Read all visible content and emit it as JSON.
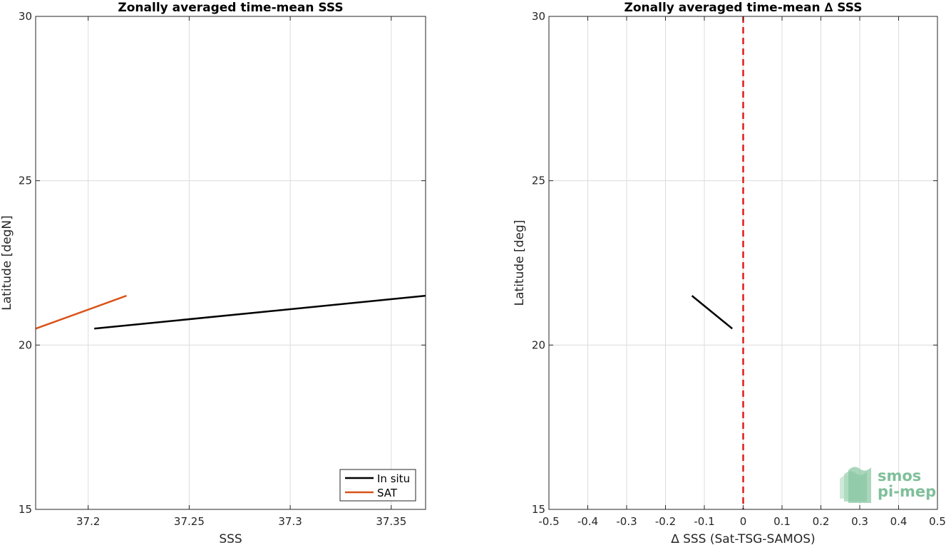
{
  "chart_data": [
    {
      "type": "line",
      "title": "Zonally averaged time-mean SSS",
      "xlabel": "SSS",
      "ylabel": "Latitude [degN]",
      "xlim": [
        37.174,
        37.367
      ],
      "ylim": [
        15,
        30
      ],
      "xticks": [
        37.2,
        37.25,
        37.3,
        37.35
      ],
      "xtick_labels": [
        "37.2",
        "37.25",
        "37.3",
        "37.35"
      ],
      "yticks": [
        15,
        20,
        25,
        30
      ],
      "ytick_labels": [
        "15",
        "20",
        "25",
        "30"
      ],
      "grid": true,
      "legend": "bottom-right",
      "series": [
        {
          "name": "In situ",
          "color": "#000000",
          "x": [
            37.203,
            37.367
          ],
          "y": [
            20.5,
            21.5
          ]
        },
        {
          "name": "SAT",
          "color": "#d95319",
          "x": [
            37.174,
            37.219
          ],
          "y": [
            20.5,
            21.5
          ]
        }
      ]
    },
    {
      "type": "line",
      "title": "Zonally averaged time-mean ∆ SSS",
      "xlabel": "∆ SSS (Sat-TSG-SAMOS)",
      "ylabel": "Latitude [deg]",
      "xlim": [
        -0.5,
        0.5
      ],
      "ylim": [
        15,
        30
      ],
      "xticks": [
        -0.5,
        -0.4,
        -0.3,
        -0.2,
        -0.1,
        0,
        0.1,
        0.2,
        0.3,
        0.4,
        0.5
      ],
      "xtick_labels": [
        "-0.5",
        "-0.4",
        "-0.3",
        "-0.2",
        "-0.1",
        "0",
        "0.1",
        "0.2",
        "0.3",
        "0.4",
        "0.5"
      ],
      "yticks": [
        15,
        20,
        25,
        30
      ],
      "ytick_labels": [
        "15",
        "20",
        "25",
        "30"
      ],
      "grid": true,
      "reference_line": {
        "x": 0,
        "color": "#e41a1c",
        "style": "dashed"
      },
      "series": [
        {
          "color": "#000000",
          "x": [
            -0.132,
            -0.028
          ],
          "y": [
            21.5,
            20.5
          ]
        }
      ]
    }
  ],
  "logo": {
    "line1": "smos",
    "line2": "pi-mep",
    "color": "#7fbf9a"
  }
}
